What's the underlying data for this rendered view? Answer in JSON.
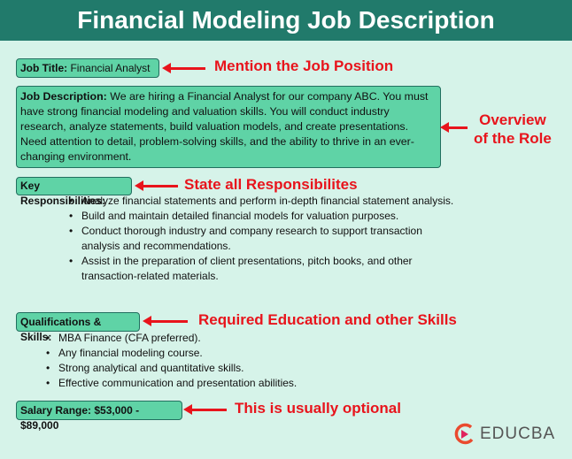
{
  "header": {
    "title": "Financial Modeling Job Description"
  },
  "job_title": {
    "label": "Job Title:",
    "value": "Financial Analyst",
    "note": "Mention the Job Position"
  },
  "job_description": {
    "label": "Job Description:",
    "value": "We are hiring a Financial Analyst for our company ABC. You must have strong financial modeling and valuation skills. You will conduct industry research, analyze statements, build valuation models, and create presentations. Need attention to detail, problem-solving skills, and the ability to thrive in an ever-changing environment.",
    "note_line1": "Overview",
    "note_line2": "of the Role"
  },
  "responsibilities": {
    "label": "Key Responsibilities:",
    "note": "State all Responsibilites",
    "items": [
      "Analyze financial statements and perform in-depth financial statement analysis.",
      "Build and maintain detailed financial models for valuation purposes.",
      "Conduct thorough industry and company research to support transaction analysis and recommendations.",
      "Assist in the preparation of client presentations, pitch books, and other transaction-related materials."
    ]
  },
  "qualifications": {
    "label": "Qualifications & Skills:",
    "note": "Required Education and other Skills",
    "items": [
      "MBA Finance (CFA preferred).",
      "Any financial modeling course.",
      "Strong analytical and quantitative skills.",
      "Effective communication and presentation abilities."
    ]
  },
  "salary": {
    "label": "Salary Range: $53,000 - $89,000",
    "note": "This is usually optional"
  },
  "logo": {
    "text": "EDUCBA"
  },
  "colors": {
    "header": "#217a6b",
    "background": "#d6f3e9",
    "box": "#5fd3a6",
    "annotation": "#e8141c"
  }
}
